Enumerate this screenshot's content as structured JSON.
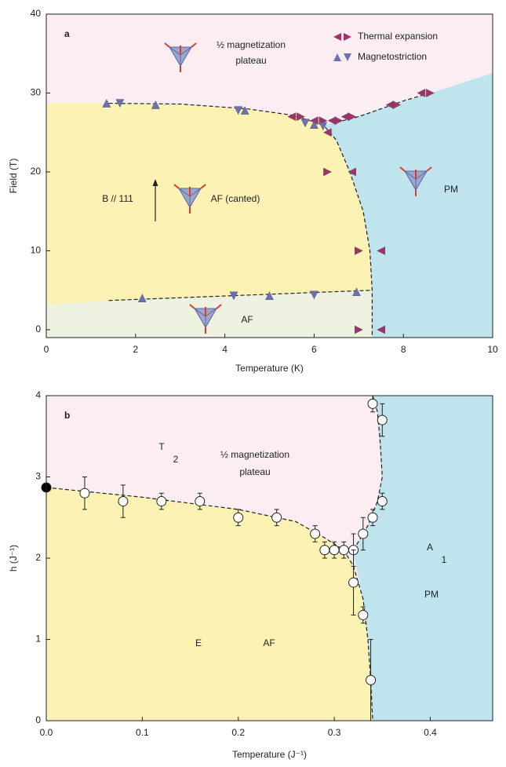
{
  "chart_data": [
    {
      "type": "scatter",
      "title": "a",
      "xlabel": "Temperature (K)",
      "ylabel": "Field (T)",
      "xlim": [
        0,
        10
      ],
      "ylim": [
        -1,
        40
      ],
      "xticks": [
        0,
        2,
        4,
        6,
        8,
        10
      ],
      "yticks": [
        0,
        10,
        20,
        30,
        40
      ],
      "legend": "upper right",
      "series": [
        {
          "name": "Thermal expansion",
          "color": "#a3306a",
          "x": [
            5.5,
            5.7,
            6.0,
            6.2,
            6.4,
            6.55,
            6.7,
            6.85,
            7.7,
            7.85,
            8.4,
            8.6,
            6.3,
            6.3,
            6.85,
            7.0,
            7.5,
            7.0,
            7.5
          ],
          "values": [
            27,
            27,
            26.5,
            26.5,
            26.5,
            26.5,
            27,
            27,
            28.5,
            28.5,
            30,
            30,
            25,
            20,
            20,
            10,
            10,
            0,
            0
          ]
        },
        {
          "name": "Magnetostriction",
          "color": "#6b70b8",
          "x": [
            1.35,
            1.65,
            2.45,
            4.3,
            4.45,
            5.8,
            6.0,
            6.2,
            2.15,
            4.2,
            5.0,
            6.0,
            6.95
          ],
          "values": [
            28.7,
            28.7,
            28.5,
            27.8,
            27.8,
            26.2,
            26,
            25.8,
            4,
            4.3,
            4.3,
            4.4,
            4.8
          ]
        }
      ],
      "boundaries": [
        {
          "x": [
            1.4,
            3,
            4.5,
            5.5,
            6.2,
            6.5,
            6.8,
            7.1,
            7.25,
            7.3,
            7.3
          ],
          "y": [
            28.7,
            28.6,
            28,
            27.2,
            26,
            24,
            20,
            15,
            10,
            5,
            -1
          ]
        },
        {
          "x": [
            6.5,
            7,
            7.5,
            8,
            8.6
          ],
          "y": [
            26.3,
            27,
            28,
            29,
            30
          ]
        },
        {
          "x": [
            1.4,
            7.3
          ],
          "y": [
            3.7,
            5.0
          ]
        }
      ],
      "annotations": [
        "½ magnetization",
        "plateau",
        "B // 111",
        "AF (canted)",
        "PM",
        "AF"
      ]
    },
    {
      "type": "scatter",
      "title": "b",
      "xlabel": "Temperature (J⁻¹)",
      "ylabel": "h (J⁻¹)",
      "xlim": [
        0,
        0.465
      ],
      "ylim": [
        0,
        4
      ],
      "xticks": [
        {
          "value": 0,
          "label": "0.0"
        },
        0.1,
        0.2,
        0.3,
        0.4
      ],
      "yticks": [
        0,
        1,
        2,
        3,
        4
      ],
      "series": [
        {
          "color": "#ffffff",
          "x": [
            0.04,
            0.08,
            0.12,
            0.16,
            0.2,
            0.24,
            0.28,
            0.29,
            0.3,
            0.31,
            0.32,
            0.32,
            0.33,
            0.33,
            0.34,
            0.35,
            0.34,
            0.35,
            0.338
          ],
          "values": [
            2.8,
            2.7,
            2.7,
            2.7,
            2.5,
            2.5,
            2.3,
            2.1,
            2.1,
            2.1,
            2.1,
            1.7,
            2.3,
            1.3,
            2.5,
            2.7,
            3.9,
            3.7,
            0.5
          ],
          "errors": [
            0.2,
            0.2,
            0.1,
            0.1,
            0.1,
            0.1,
            0.1,
            0.1,
            0.1,
            0.1,
            0.2,
            0.4,
            0.2,
            0.1,
            0.1,
            0.1,
            0.1,
            0.2,
            0.5
          ]
        },
        {
          "color": "#000000",
          "x": [
            0
          ],
          "values": [
            2.87
          ]
        }
      ],
      "boundaries": [
        {
          "x": [
            0,
            0.1,
            0.2,
            0.26,
            0.29,
            0.31,
            0.32,
            0.33,
            0.335,
            0.338,
            0.34
          ],
          "y": [
            2.87,
            2.75,
            2.6,
            2.45,
            2.25,
            2.1,
            1.9,
            1.5,
            1.0,
            0.5,
            0
          ]
        },
        {
          "x": [
            0.32,
            0.335,
            0.345,
            0.35,
            0.348,
            0.345,
            0.34
          ],
          "y": [
            2.1,
            2.4,
            2.7,
            3.0,
            3.4,
            3.8,
            4.0
          ]
        }
      ],
      "annotations": [
        "T",
        "2",
        "½ magnetization",
        "plateau",
        "A",
        "1",
        "E",
        "AF",
        "PM"
      ]
    }
  ]
}
